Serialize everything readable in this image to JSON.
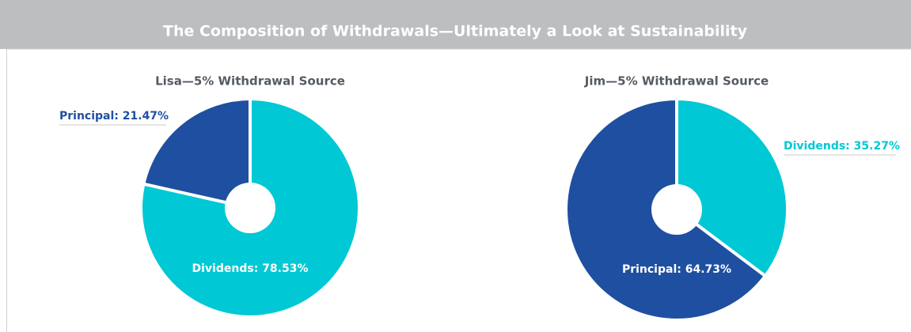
{
  "header": {
    "title": "The Composition of Withdrawals—Ultimately a Look at Sustainability"
  },
  "chart_data": [
    {
      "type": "pie",
      "title": "Lisa—5% Withdrawal Source",
      "values": [
        78.53,
        21.47
      ],
      "value_labels": [
        "Dividends: 78.53%",
        "Principal: 21.47%"
      ],
      "colors": [
        "#00c8d4",
        "#1f4fa0"
      ]
    },
    {
      "type": "pie",
      "title": "Jim—5% Withdrawal Source",
      "values": [
        35.27,
        64.73
      ],
      "value_labels": [
        "Dividends: 35.27%",
        "Principal: 64.73%"
      ],
      "colors": [
        "#00c8d4",
        "#1f4fa0"
      ]
    }
  ]
}
